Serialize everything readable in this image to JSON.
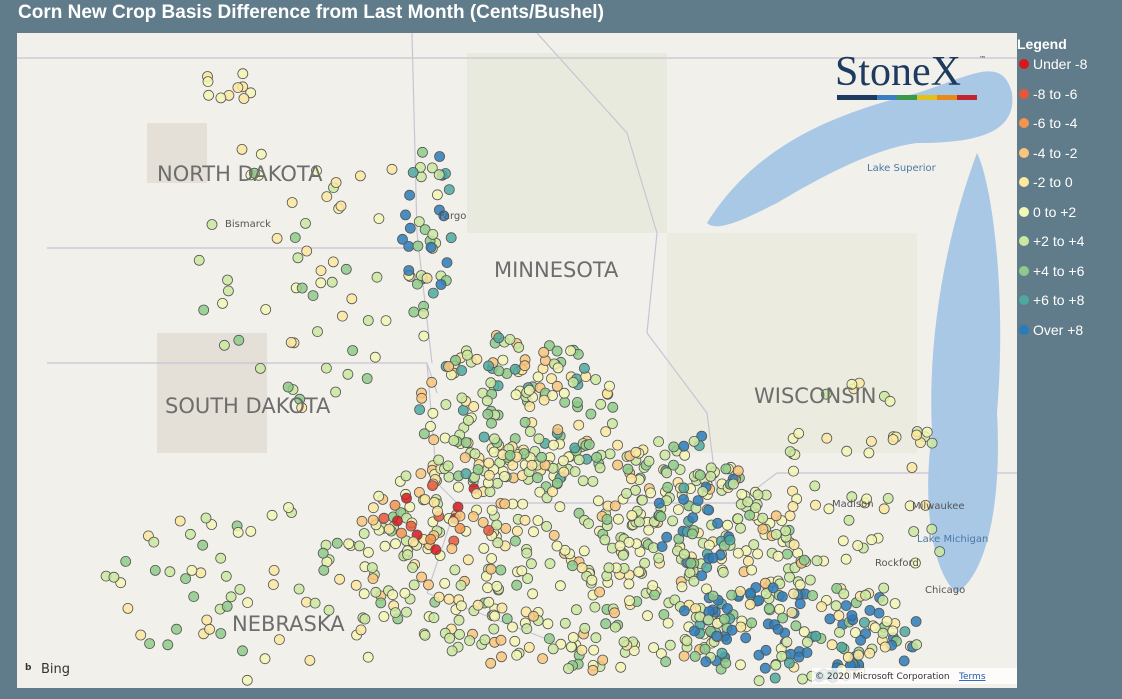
{
  "header": {
    "title": "Corn New Crop Basis Difference from Last Month (Cents/Bushel)"
  },
  "legend": {
    "title": "Legend",
    "items": [
      {
        "label": "Under -8",
        "color": "#d7191c"
      },
      {
        "label": "-8 to -6",
        "color": "#e9573b"
      },
      {
        "label": "-6 to -4",
        "color": "#f3944f"
      },
      {
        "label": "-4 to -2",
        "color": "#f9c57c"
      },
      {
        "label": "-2 to 0",
        "color": "#fde8a0"
      },
      {
        "label": "0 to +2",
        "color": "#f3f6b4"
      },
      {
        "label": "+2 to +4",
        "color": "#cbe7a0"
      },
      {
        "label": "+4 to +6",
        "color": "#8ecb8a"
      },
      {
        "label": "+6 to +8",
        "color": "#4da9a0"
      },
      {
        "label": "Over +8",
        "color": "#2b7bba"
      }
    ]
  },
  "logo": {
    "name": "StoneX",
    "mark": "™"
  },
  "map": {
    "regions": [
      "NORTH DAKOTA",
      "SOUTH DAKOTA",
      "MINNESOTA",
      "WISCONSIN",
      "NEBRASKA"
    ],
    "places": [
      "Bismarck",
      "Fargo",
      "Lake Superior",
      "Milwaukee",
      "Lake Michigan",
      "Chicago",
      "Madison",
      "Rockford"
    ]
  },
  "footer": {
    "provider": "Bing",
    "copyright": "© 2020 Microsoft Corporation",
    "terms": "Terms"
  }
}
